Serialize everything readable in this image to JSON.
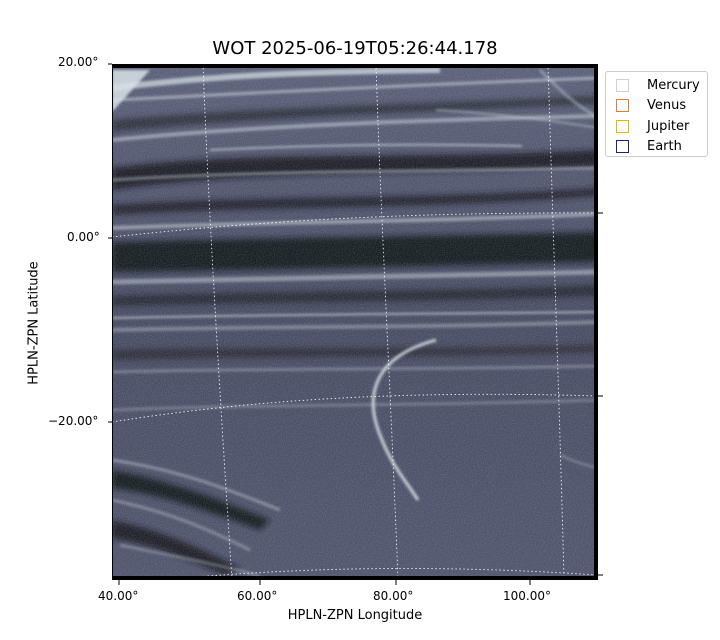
{
  "title": "WOT 2025-06-19T05:26:44.178",
  "axes": {
    "ylabel": "HPLN-ZPN Latitude",
    "xlabel": "HPLN-ZPN Longitude",
    "y_ticks": [
      "20.00°",
      "0.00°",
      "−20.00°"
    ],
    "x_ticks": [
      "40.00°",
      "60.00°",
      "80.00°",
      "100.00°"
    ]
  },
  "legend": {
    "items": [
      {
        "label": "Mercury",
        "color": "#d0d0d0"
      },
      {
        "label": "Venus",
        "color": "#e07b39"
      },
      {
        "label": "Jupiter",
        "color": "#e8b400"
      },
      {
        "label": "Earth",
        "color": "#1a237e"
      }
    ]
  },
  "image": {
    "background_color": "#4c5068",
    "streak_color": "#c6d2d8",
    "dark_band_color": "#14161c",
    "grid_color": "#ffffff"
  }
}
